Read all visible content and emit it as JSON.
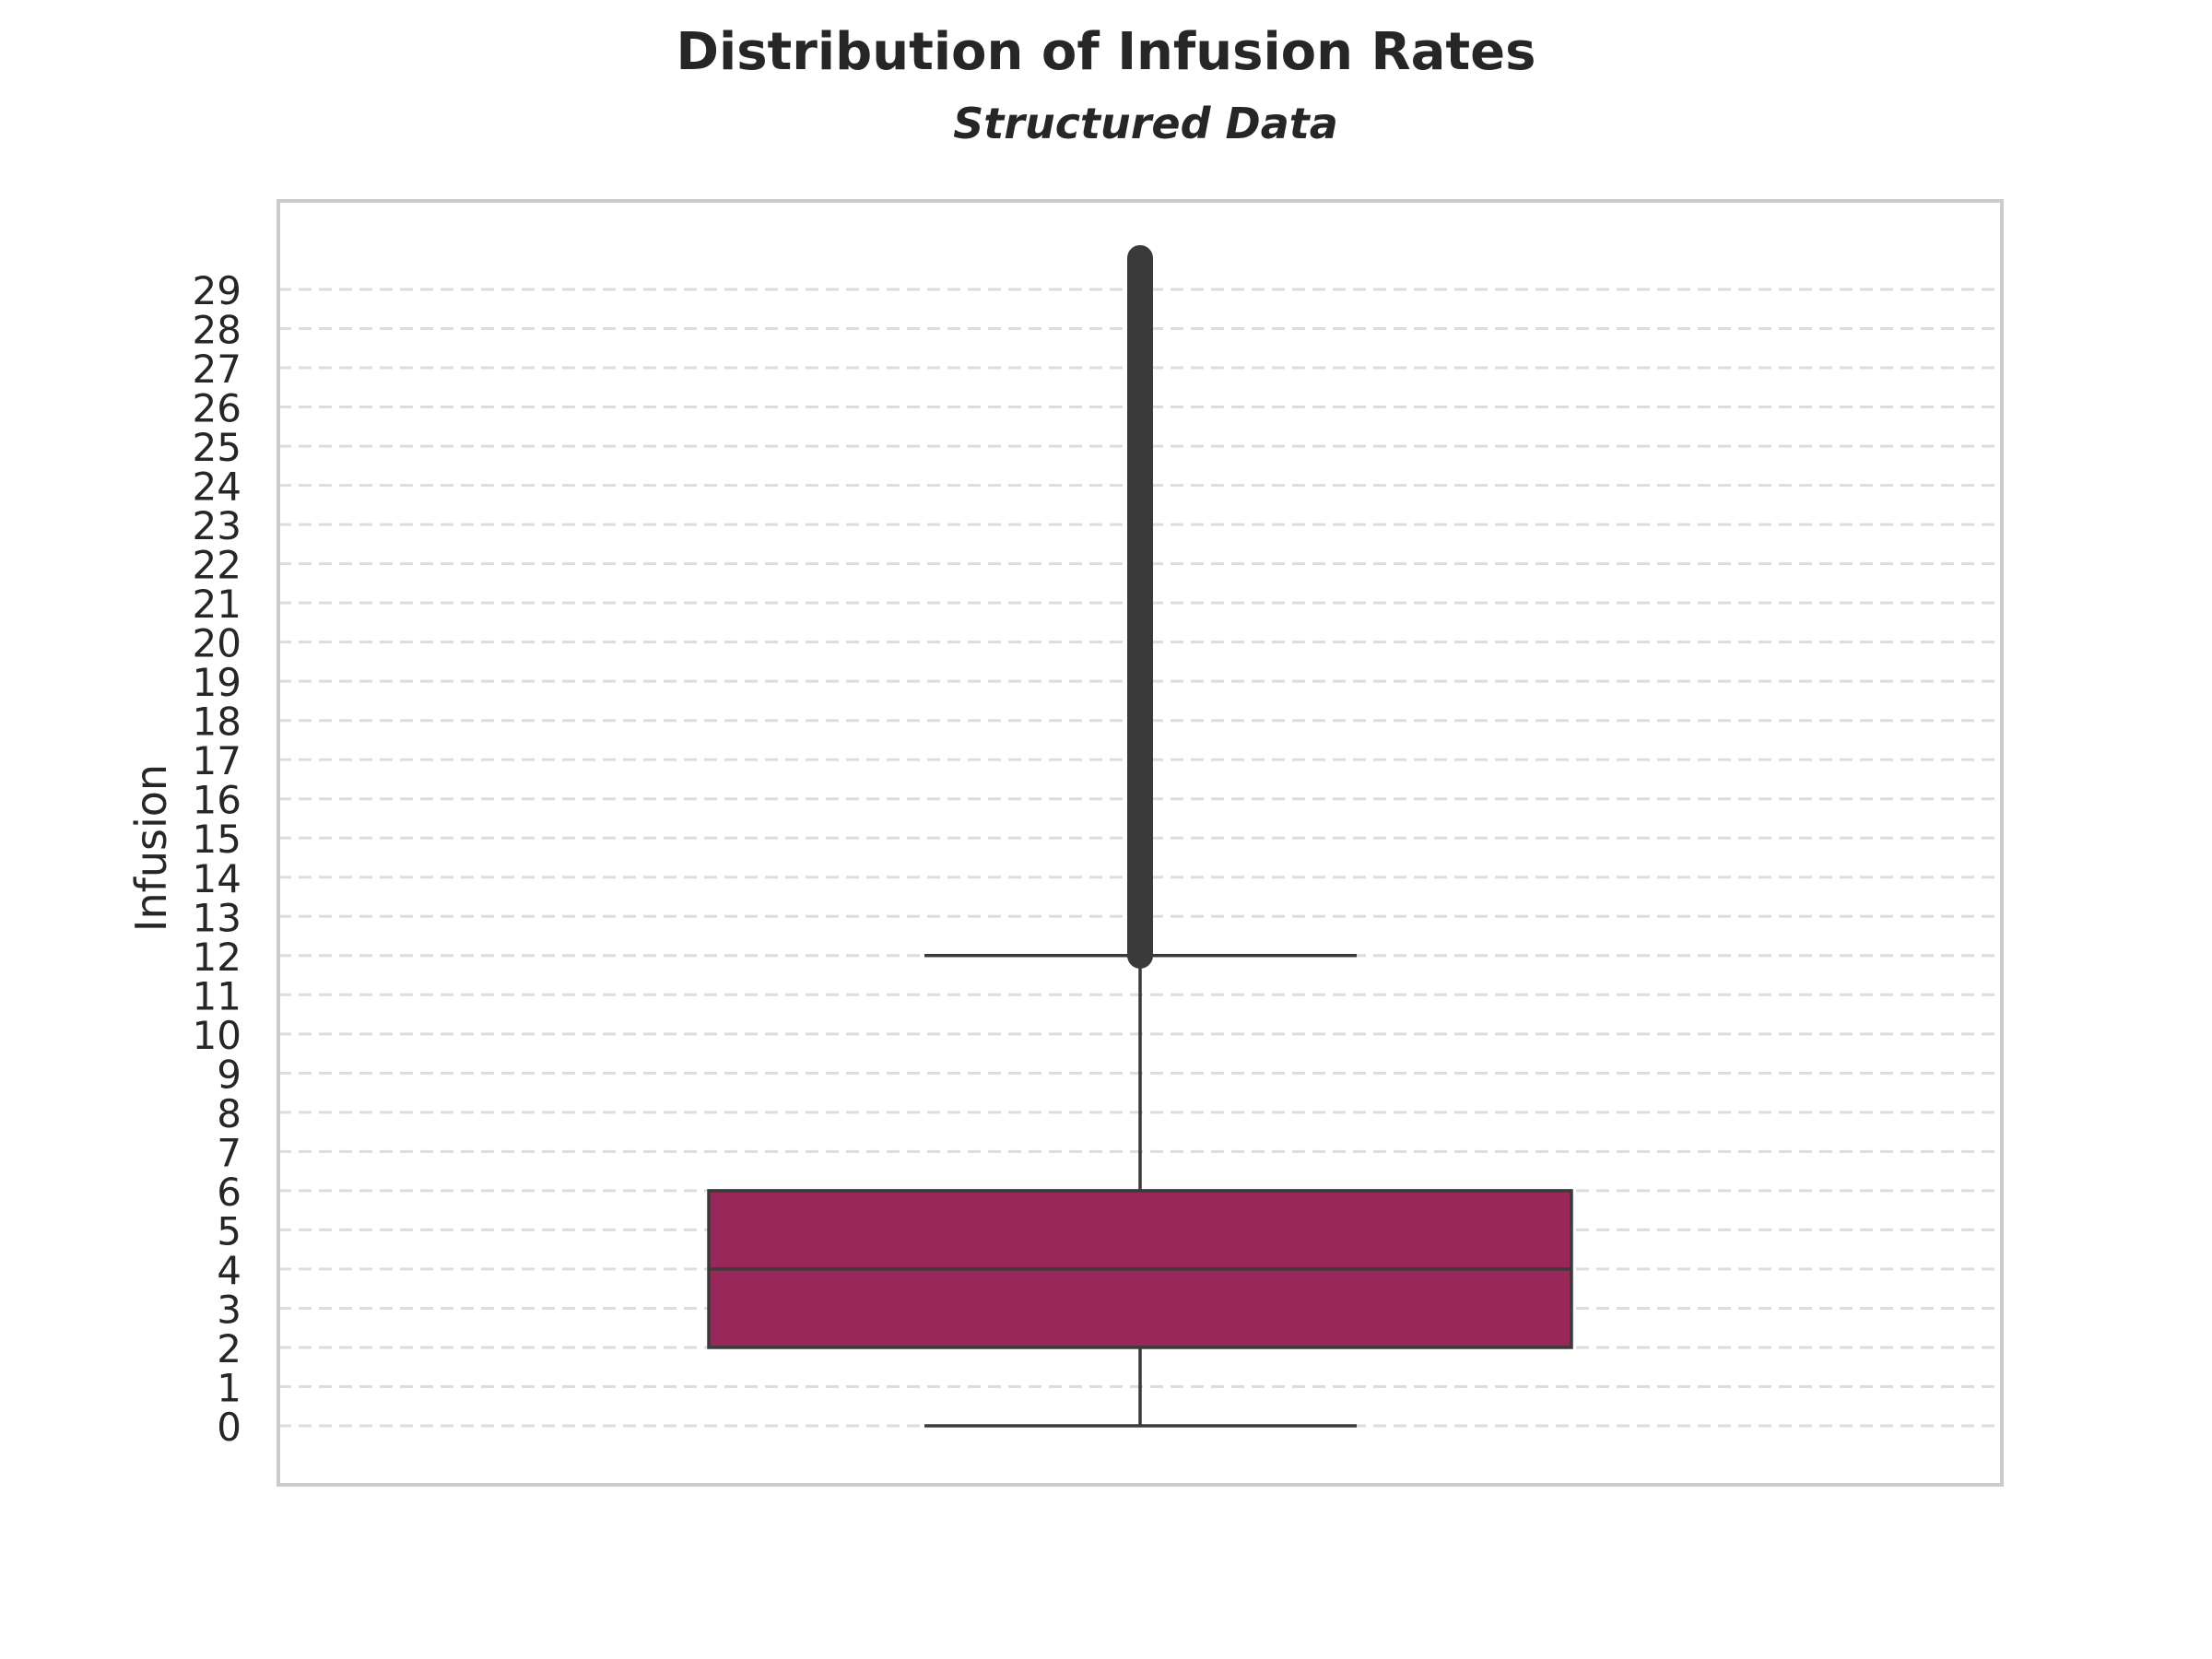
{
  "chart_data": {
    "type": "box",
    "title": "Distribution of Infusion Rates",
    "subtitle": "Structured Data",
    "xlabel": "",
    "ylabel": "Infusion",
    "ylim": [
      -1.5,
      31.3
    ],
    "yticks": [
      0,
      1,
      2,
      3,
      4,
      5,
      6,
      7,
      8,
      9,
      10,
      11,
      12,
      13,
      14,
      15,
      16,
      17,
      18,
      19,
      20,
      21,
      22,
      23,
      24,
      25,
      26,
      27,
      28,
      29
    ],
    "grid": "horizontal dashed",
    "legend": "none",
    "box": {
      "whisker_low": 0,
      "q1": 2,
      "median": 4,
      "q3": 6,
      "whisker_high": 12
    },
    "outliers": {
      "min": 12,
      "max": 29.8,
      "description_dense": true
    },
    "colors": {
      "box_fill": "#982859",
      "line": "#3a3a3a",
      "grid": "#dddddd",
      "frame": "#cccccc"
    }
  }
}
